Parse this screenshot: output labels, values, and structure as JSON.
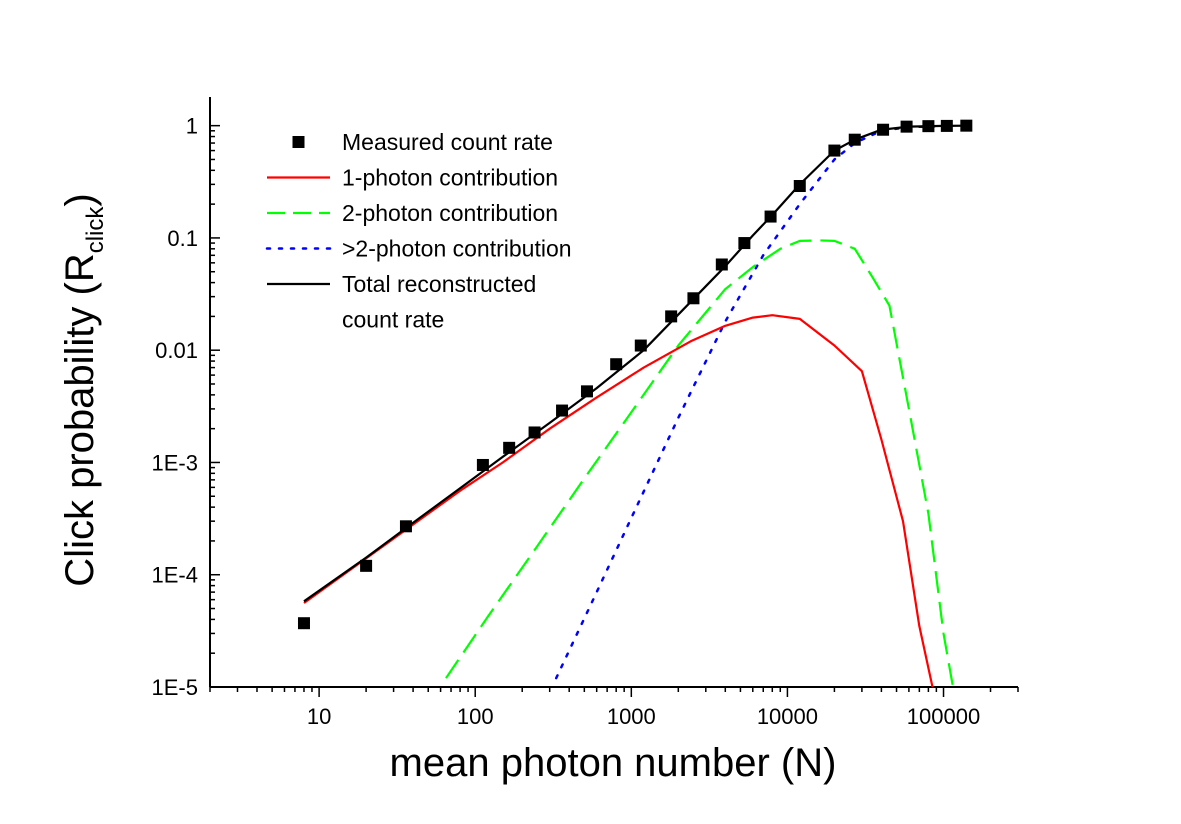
{
  "chart_data": {
    "type": "line",
    "xscale": "log",
    "yscale": "log",
    "xlim": [
      2,
      300000
    ],
    "ylim": [
      1e-05,
      1.8
    ],
    "xlabel": "mean photon number (N)",
    "ylabel": {
      "main": "Click probability (R",
      "sub": "click",
      "close": ")"
    },
    "x_ticks": [
      {
        "value": 10,
        "label": "10"
      },
      {
        "value": 100,
        "label": "100"
      },
      {
        "value": 1000,
        "label": "1000"
      },
      {
        "value": 10000,
        "label": "10000"
      },
      {
        "value": 100000,
        "label": "100000"
      }
    ],
    "y_ticks": [
      {
        "value": 1e-05,
        "label": "1E-5"
      },
      {
        "value": 0.0001,
        "label": "1E-4"
      },
      {
        "value": 0.001,
        "label": "1E-3"
      },
      {
        "value": 0.01,
        "label": "0.01"
      },
      {
        "value": 0.1,
        "label": "0.1"
      },
      {
        "value": 1,
        "label": "1"
      }
    ],
    "legend_position": "top-left",
    "series": [
      {
        "name": "Measured count rate",
        "style": "markers",
        "color": "#000000",
        "x": [
          8,
          20,
          36,
          112,
          165,
          240,
          360,
          520,
          800,
          1150,
          1800,
          2500,
          3800,
          5300,
          7800,
          12000,
          20000,
          27000,
          41000,
          58000,
          80000,
          105000,
          140000
        ],
        "y": [
          3.7e-05,
          0.00012,
          0.00027,
          0.00095,
          0.00135,
          0.00185,
          0.0029,
          0.0043,
          0.0075,
          0.011,
          0.02,
          0.029,
          0.058,
          0.09,
          0.155,
          0.29,
          0.6,
          0.75,
          0.92,
          0.98,
          0.99,
          0.995,
          1.0
        ]
      },
      {
        "name": "1-photon contribution",
        "style": "solid",
        "color": "#ff0000",
        "x": [
          8,
          20,
          40,
          80,
          150,
          300,
          600,
          1200,
          2400,
          4000,
          6000,
          8000,
          12000,
          20000,
          30000,
          40000,
          55000,
          70000,
          85000
        ],
        "y": [
          5.6e-05,
          0.00014,
          0.00028,
          0.00056,
          0.001,
          0.002,
          0.0038,
          0.007,
          0.012,
          0.0165,
          0.0195,
          0.0205,
          0.019,
          0.011,
          0.0065,
          0.0016,
          0.0003,
          3.5e-05,
          1e-05
        ]
      },
      {
        "name": "2-photon contribution",
        "style": "dashed",
        "color": "#00ff00",
        "x": [
          65,
          120,
          250,
          500,
          1000,
          2000,
          4000,
          6000,
          9000,
          12000,
          16000,
          20000,
          27000,
          35000,
          45000,
          60000,
          80000,
          100000,
          115000
        ],
        "y": [
          1.2e-05,
          4.2e-05,
          0.00018,
          0.00072,
          0.0028,
          0.011,
          0.035,
          0.055,
          0.08,
          0.094,
          0.095,
          0.094,
          0.08,
          0.045,
          0.025,
          0.003,
          0.00035,
          3e-05,
          1e-05
        ]
      },
      {
        "name": ">2-photon contribution",
        "style": "dotted",
        "color": "#0000ff",
        "x": [
          330,
          600,
          1000,
          2000,
          4000,
          7000,
          12000,
          20000,
          27000,
          40000,
          60000,
          100000
        ],
        "y": [
          1.2e-05,
          7e-05,
          0.00032,
          0.0025,
          0.018,
          0.07,
          0.2,
          0.5,
          0.7,
          0.9,
          0.97,
          0.99
        ]
      },
      {
        "name": "Total reconstructed count rate",
        "legend_lines": [
          "Total reconstructed",
          "count rate"
        ],
        "style": "solid",
        "color": "#000000",
        "x": [
          8,
          20,
          40,
          80,
          150,
          300,
          600,
          1200,
          2400,
          4000,
          6000,
          8000,
          12000,
          20000,
          27000,
          40000,
          60000,
          100000,
          140000
        ],
        "y": [
          5.8e-05,
          0.000142,
          0.00029,
          0.00059,
          0.00112,
          0.00225,
          0.0046,
          0.01,
          0.027,
          0.056,
          0.105,
          0.16,
          0.3,
          0.6,
          0.75,
          0.92,
          0.98,
          0.995,
          1.0
        ]
      }
    ]
  }
}
